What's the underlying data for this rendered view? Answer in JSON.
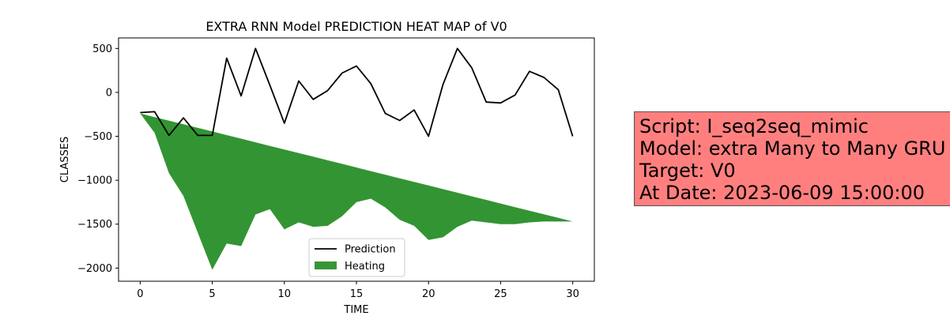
{
  "chart_data": {
    "type": "line",
    "title": "EXTRA RNN Model PREDICTION HEAT MAP of V0",
    "xlabel": "TIME",
    "ylabel": "CLASSES",
    "xlim": [
      -1.5,
      31.5
    ],
    "ylim": [
      -2150,
      620
    ],
    "xticks": [
      0,
      5,
      10,
      15,
      20,
      25,
      30
    ],
    "yticks": [
      -2000,
      -1500,
      -1000,
      -500,
      0,
      500
    ],
    "grid": false,
    "legend_position": "lower-center",
    "series": [
      {
        "name": "Prediction",
        "type": "line",
        "color": "#000000",
        "x": [
          0,
          1,
          2,
          3,
          4,
          5,
          6,
          7,
          8,
          9,
          10,
          11,
          12,
          13,
          14,
          15,
          16,
          17,
          18,
          19,
          20,
          21,
          22,
          23,
          24,
          25,
          26,
          27,
          28,
          29,
          30
        ],
        "y": [
          -230,
          -220,
          -490,
          -290,
          -490,
          -490,
          390,
          -40,
          500,
          80,
          -350,
          130,
          -80,
          20,
          220,
          300,
          100,
          -240,
          -320,
          -200,
          -500,
          90,
          500,
          280,
          -110,
          -120,
          -30,
          240,
          170,
          30,
          -500
        ]
      },
      {
        "name": "Heating",
        "type": "area",
        "color": "#228b22",
        "x": [
          0,
          1,
          2,
          3,
          4,
          5,
          6,
          7,
          8,
          9,
          10,
          11,
          12,
          13,
          14,
          15,
          16,
          17,
          18,
          19,
          20,
          21,
          22,
          23,
          24,
          25,
          26,
          27,
          28,
          29,
          30
        ],
        "upper": [
          -240,
          -281,
          -322,
          -363,
          -404,
          -445,
          -486,
          -527,
          -568,
          -609,
          -650,
          -691,
          -732,
          -773,
          -814,
          -855,
          -896,
          -937,
          -978,
          -1019,
          -1060,
          -1101,
          -1142,
          -1183,
          -1224,
          -1265,
          -1306,
          -1347,
          -1388,
          -1429,
          -1470
        ],
        "lower": [
          -240,
          -460,
          -920,
          -1180,
          -1600,
          -2020,
          -1720,
          -1750,
          -1390,
          -1330,
          -1560,
          -1480,
          -1530,
          -1520,
          -1410,
          -1250,
          -1210,
          -1310,
          -1450,
          -1520,
          -1680,
          -1650,
          -1530,
          -1460,
          -1480,
          -1500,
          -1500,
          -1480,
          -1470,
          -1470,
          -1470
        ]
      }
    ]
  },
  "info_box": {
    "lines": [
      "Script: I_seq2seq_mimic",
      "Model: extra Many to Many GRU",
      "Target: V0",
      "At Date: 2023-06-09 15:00:00"
    ]
  }
}
